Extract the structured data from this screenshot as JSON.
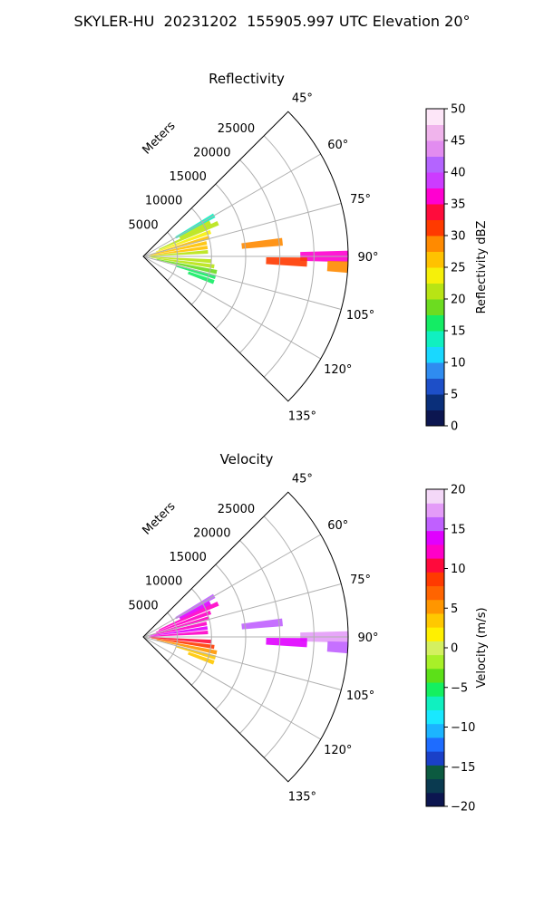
{
  "figure_title": "SKYLER-HU  20231202  155905.997 UTC Elevation 20°",
  "chart_data": [
    {
      "type": "polar-sector",
      "title": "Reflectivity",
      "theta_range_deg": [
        45,
        135
      ],
      "angle_ticks": [
        "45°",
        "60°",
        "75°",
        "90°",
        "105°",
        "120°",
        "135°"
      ],
      "r_max_m": 30000,
      "radial_ticks": [
        5000,
        10000,
        15000,
        20000,
        25000
      ],
      "radial_axis_label": "Meters",
      "grid": true,
      "colorbar": {
        "label": "Reflectivity dBZ",
        "min": 0,
        "max": 50,
        "ticks": [
          0,
          5,
          10,
          15,
          20,
          25,
          30,
          35,
          40,
          45,
          50
        ],
        "colormap": "pyart_HomeyerRainbow",
        "colors": [
          "#0c1650",
          "#0a2f7a",
          "#1d4fc8",
          "#2f8cf0",
          "#19d8ff",
          "#10f0c0",
          "#14ec64",
          "#6cdc20",
          "#b8e414",
          "#f6f00a",
          "#ffc200",
          "#ff8a00",
          "#ff3a00",
          "#ff0c3c",
          "#ff00d0",
          "#cc3cff",
          "#b464ff",
          "#e28cf0",
          "#f0b4ec",
          "#fde6f8"
        ]
      },
      "gates": [
        {
          "az": 60,
          "r0": 5500,
          "r1": 12000,
          "value": 14
        },
        {
          "az": 63,
          "r0": 6000,
          "r1": 11000,
          "value": 22
        },
        {
          "az": 66,
          "r0": 2500,
          "r1": 12000,
          "value": 20
        },
        {
          "az": 70,
          "r0": 2000,
          "r1": 10500,
          "value": 24
        },
        {
          "az": 74,
          "r0": 1500,
          "r1": 10000,
          "value": 26
        },
        {
          "az": 78,
          "r0": 1200,
          "r1": 9500,
          "value": 27
        },
        {
          "az": 82,
          "r0": 1000,
          "r1": 9500,
          "value": 25
        },
        {
          "az": 86,
          "r0": 800,
          "r1": 9500,
          "value": 22
        },
        {
          "az": 94,
          "r0": 800,
          "r1": 10000,
          "value": 22
        },
        {
          "az": 98,
          "r0": 1200,
          "r1": 10500,
          "value": 20
        },
        {
          "az": 102,
          "r0": 2000,
          "r1": 11000,
          "value": 18
        },
        {
          "az": 106,
          "r0": 5000,
          "r1": 11000,
          "value": 17
        },
        {
          "az": 110,
          "r0": 7000,
          "r1": 11000,
          "value": 15
        },
        {
          "az": 84,
          "r0": 14500,
          "r1": 20500,
          "value": 28
        },
        {
          "az": 90,
          "r0": 23000,
          "r1": 30000,
          "value": 36
        },
        {
          "az": 92,
          "r0": 18000,
          "r1": 24000,
          "value": 30
        },
        {
          "az": 93,
          "r0": 27000,
          "r1": 30000,
          "value": 28
        }
      ]
    },
    {
      "type": "polar-sector",
      "title": "Velocity",
      "theta_range_deg": [
        45,
        135
      ],
      "angle_ticks": [
        "45°",
        "60°",
        "75°",
        "90°",
        "105°",
        "120°",
        "135°"
      ],
      "r_max_m": 30000,
      "radial_ticks": [
        5000,
        10000,
        15000,
        20000,
        25000
      ],
      "radial_axis_label": "Meters",
      "grid": true,
      "colorbar": {
        "label": "Velocity (m/s)",
        "min": -20,
        "max": 20,
        "ticks": [
          -20,
          -15,
          -10,
          -5,
          0,
          5,
          10,
          15,
          20
        ],
        "colormap": "pyart_BuDRd18",
        "colors": [
          "#0c1650",
          "#0a3a50",
          "#0c5a40",
          "#1a40c8",
          "#1e6cff",
          "#1cb4ff",
          "#19e8ff",
          "#10f0c0",
          "#14f060",
          "#5ce018",
          "#a8f028",
          "#d4f060",
          "#fff000",
          "#ffc800",
          "#ff9600",
          "#ff6400",
          "#ff3a00",
          "#ff0a3c",
          "#ff00c8",
          "#e000ff",
          "#c060ff",
          "#e49cf8",
          "#f4d8f8"
        ]
      },
      "gates": [
        {
          "az": 60,
          "r0": 5500,
          "r1": 12000,
          "value": 15
        },
        {
          "az": 63,
          "r0": 6000,
          "r1": 11000,
          "value": 14
        },
        {
          "az": 66,
          "r0": 2500,
          "r1": 12000,
          "value": 12
        },
        {
          "az": 70,
          "r0": 2000,
          "r1": 10500,
          "value": 12
        },
        {
          "az": 74,
          "r0": 1500,
          "r1": 10000,
          "value": 13
        },
        {
          "az": 78,
          "r0": 1200,
          "r1": 9500,
          "value": 13
        },
        {
          "az": 82,
          "r0": 1000,
          "r1": 9500,
          "value": 14
        },
        {
          "az": 86,
          "r0": 800,
          "r1": 9500,
          "value": 13
        },
        {
          "az": 94,
          "r0": 800,
          "r1": 10000,
          "value": 10
        },
        {
          "az": 98,
          "r0": 1200,
          "r1": 10500,
          "value": 8
        },
        {
          "az": 102,
          "r0": 2000,
          "r1": 11000,
          "value": 5
        },
        {
          "az": 106,
          "r0": 5000,
          "r1": 11000,
          "value": 3
        },
        {
          "az": 110,
          "r0": 7000,
          "r1": 11000,
          "value": 4
        },
        {
          "az": 84,
          "r0": 14500,
          "r1": 20500,
          "value": 16
        },
        {
          "az": 90,
          "r0": 23000,
          "r1": 30000,
          "value": 17
        },
        {
          "az": 92,
          "r0": 18000,
          "r1": 24000,
          "value": 14
        },
        {
          "az": 93,
          "r0": 27000,
          "r1": 30000,
          "value": 16
        }
      ]
    }
  ]
}
